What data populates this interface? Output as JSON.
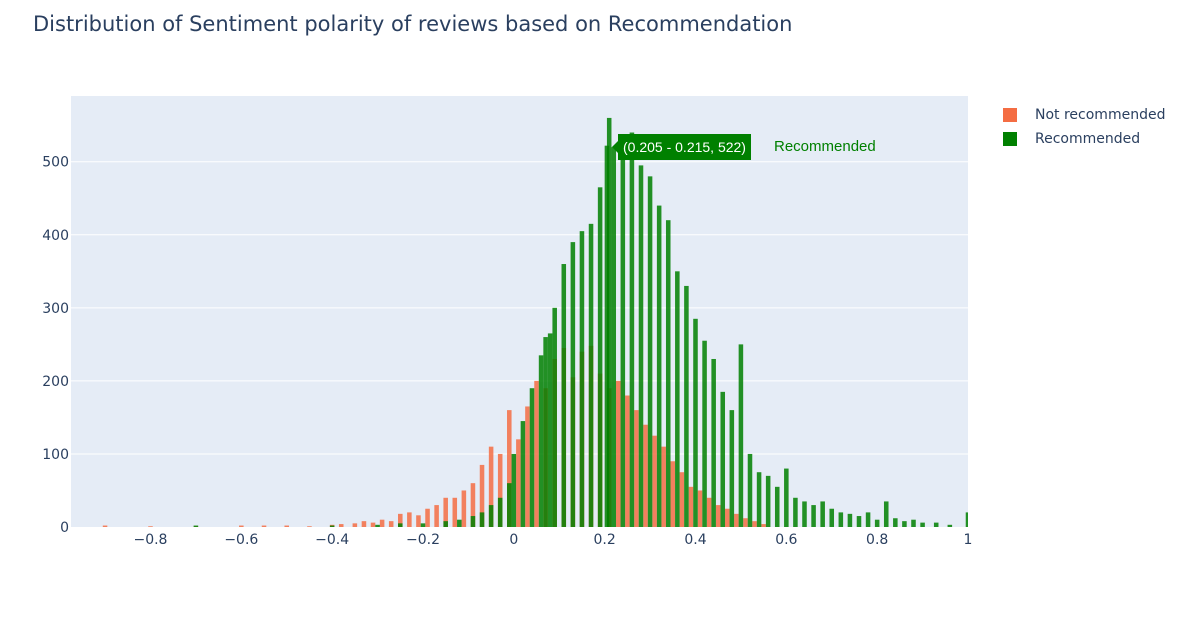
{
  "chart_data": {
    "type": "histogram",
    "title": "Distribution of Sentiment polarity of reviews based on Recommendation",
    "xlabel": "",
    "ylabel": "",
    "xlim": [
      -0.975,
      1.0
    ],
    "ylim": [
      0,
      590
    ],
    "bin_width": 0.01,
    "grid": true,
    "legend_position": "top-right",
    "x_ticks": [
      {
        "value": -0.8,
        "label": "−0.8"
      },
      {
        "value": -0.6,
        "label": "−0.6"
      },
      {
        "value": -0.4,
        "label": "−0.4"
      },
      {
        "value": -0.2,
        "label": "−0.2"
      },
      {
        "value": 0,
        "label": "0"
      },
      {
        "value": 0.2,
        "label": "0.2"
      },
      {
        "value": 0.4,
        "label": "0.4"
      },
      {
        "value": 0.6,
        "label": "0.6"
      },
      {
        "value": 0.8,
        "label": "0.8"
      },
      {
        "value": 1,
        "label": "1"
      }
    ],
    "y_ticks": [
      {
        "value": 0,
        "label": "0"
      },
      {
        "value": 100,
        "label": "100"
      },
      {
        "value": 200,
        "label": "200"
      },
      {
        "value": 300,
        "label": "300"
      },
      {
        "value": 400,
        "label": "400"
      },
      {
        "value": 500,
        "label": "500"
      }
    ],
    "series": [
      {
        "name": "Not recommended",
        "color": "#f46d43",
        "bins": [
          [
            -1.0,
            3
          ],
          [
            -0.9,
            2
          ],
          [
            -0.8,
            1
          ],
          [
            -0.7,
            1
          ],
          [
            -0.6,
            2
          ],
          [
            -0.55,
            2
          ],
          [
            -0.5,
            2
          ],
          [
            -0.45,
            1
          ],
          [
            -0.4,
            3
          ],
          [
            -0.38,
            4
          ],
          [
            -0.35,
            5
          ],
          [
            -0.33,
            8
          ],
          [
            -0.31,
            6
          ],
          [
            -0.29,
            10
          ],
          [
            -0.27,
            8
          ],
          [
            -0.25,
            18
          ],
          [
            -0.23,
            20
          ],
          [
            -0.21,
            16
          ],
          [
            -0.19,
            25
          ],
          [
            -0.17,
            30
          ],
          [
            -0.15,
            40
          ],
          [
            -0.13,
            40
          ],
          [
            -0.11,
            50
          ],
          [
            -0.09,
            60
          ],
          [
            -0.07,
            85
          ],
          [
            -0.05,
            110
          ],
          [
            -0.03,
            100
          ],
          [
            -0.01,
            160
          ],
          [
            0.01,
            120
          ],
          [
            0.03,
            165
          ],
          [
            0.05,
            200
          ],
          [
            0.07,
            190
          ],
          [
            0.09,
            230
          ],
          [
            0.11,
            245
          ],
          [
            0.13,
            205
          ],
          [
            0.15,
            240
          ],
          [
            0.17,
            248
          ],
          [
            0.19,
            210
          ],
          [
            0.21,
            190
          ],
          [
            0.23,
            200
          ],
          [
            0.25,
            180
          ],
          [
            0.27,
            160
          ],
          [
            0.29,
            140
          ],
          [
            0.31,
            125
          ],
          [
            0.33,
            110
          ],
          [
            0.35,
            90
          ],
          [
            0.37,
            75
          ],
          [
            0.39,
            55
          ],
          [
            0.41,
            50
          ],
          [
            0.43,
            40
          ],
          [
            0.45,
            30
          ],
          [
            0.47,
            25
          ],
          [
            0.49,
            18
          ],
          [
            0.51,
            12
          ],
          [
            0.53,
            8
          ],
          [
            0.55,
            4
          ]
        ]
      },
      {
        "name": "Recommended",
        "color": "#008000",
        "bins": [
          [
            -0.7,
            2
          ],
          [
            -0.4,
            2
          ],
          [
            -0.3,
            3
          ],
          [
            -0.25,
            5
          ],
          [
            -0.2,
            5
          ],
          [
            -0.15,
            8
          ],
          [
            -0.12,
            10
          ],
          [
            -0.09,
            15
          ],
          [
            -0.07,
            20
          ],
          [
            -0.05,
            30
          ],
          [
            -0.03,
            40
          ],
          [
            -0.01,
            60
          ],
          [
            0.0,
            100
          ],
          [
            0.02,
            145
          ],
          [
            0.04,
            190
          ],
          [
            0.06,
            235
          ],
          [
            0.07,
            260
          ],
          [
            0.08,
            265
          ],
          [
            0.09,
            300
          ],
          [
            0.11,
            360
          ],
          [
            0.13,
            390
          ],
          [
            0.15,
            405
          ],
          [
            0.17,
            415
          ],
          [
            0.19,
            465
          ],
          [
            0.205,
            522
          ],
          [
            0.21,
            560
          ],
          [
            0.22,
            520
          ],
          [
            0.24,
            530
          ],
          [
            0.26,
            540
          ],
          [
            0.28,
            495
          ],
          [
            0.3,
            480
          ],
          [
            0.32,
            440
          ],
          [
            0.34,
            420
          ],
          [
            0.36,
            350
          ],
          [
            0.38,
            330
          ],
          [
            0.4,
            285
          ],
          [
            0.42,
            255
          ],
          [
            0.44,
            230
          ],
          [
            0.46,
            185
          ],
          [
            0.48,
            160
          ],
          [
            0.5,
            250
          ],
          [
            0.52,
            100
          ],
          [
            0.54,
            75
          ],
          [
            0.56,
            70
          ],
          [
            0.58,
            55
          ],
          [
            0.6,
            80
          ],
          [
            0.62,
            40
          ],
          [
            0.64,
            35
          ],
          [
            0.66,
            30
          ],
          [
            0.68,
            35
          ],
          [
            0.7,
            25
          ],
          [
            0.72,
            20
          ],
          [
            0.74,
            18
          ],
          [
            0.76,
            15
          ],
          [
            0.78,
            20
          ],
          [
            0.8,
            10
          ],
          [
            0.82,
            35
          ],
          [
            0.84,
            12
          ],
          [
            0.86,
            8
          ],
          [
            0.88,
            10
          ],
          [
            0.9,
            6
          ],
          [
            0.93,
            6
          ],
          [
            0.96,
            3
          ],
          [
            1.0,
            20
          ]
        ]
      }
    ],
    "hover": {
      "label": "(0.205 - 0.215, 522)",
      "series": "Recommended",
      "x": 0.21,
      "y": 522
    }
  }
}
